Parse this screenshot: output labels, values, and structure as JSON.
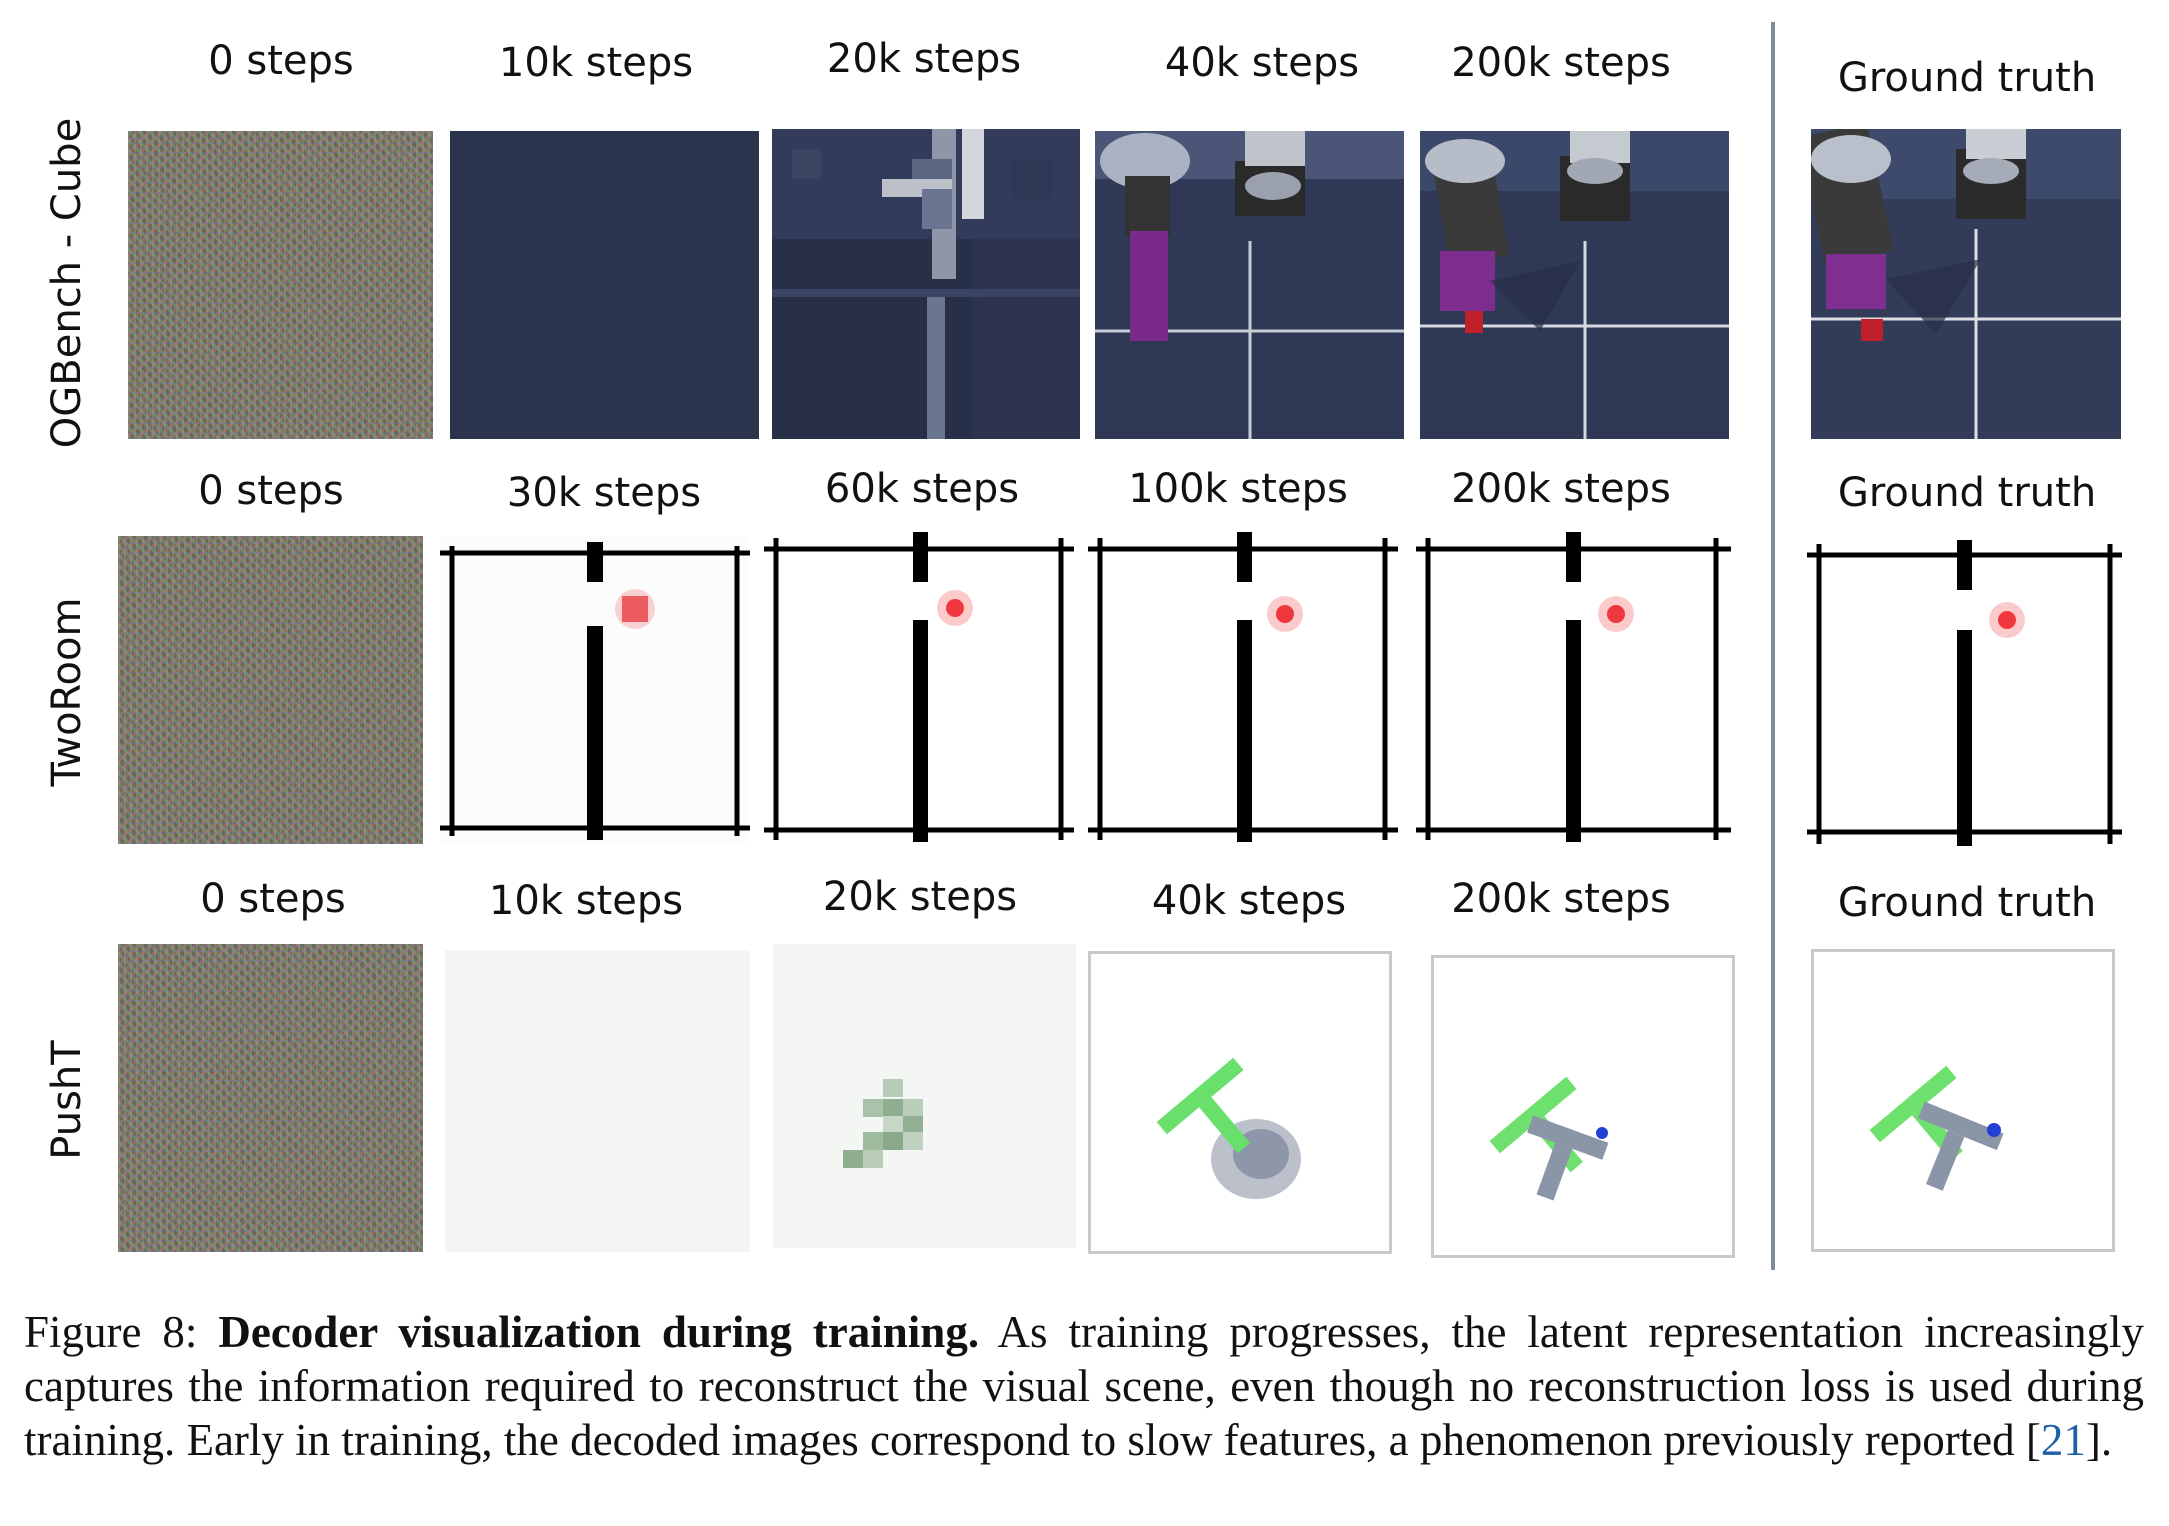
{
  "rows": [
    {
      "name": "OGBench - Cube",
      "labels": [
        "0 steps",
        "10k steps",
        "20k steps",
        "40k steps",
        "200k steps"
      ],
      "ground_truth": "Ground truth"
    },
    {
      "name": "TwoRoom",
      "labels": [
        "0 steps",
        "30k steps",
        "60k steps",
        "100k steps",
        "200k steps"
      ],
      "ground_truth": "Ground truth"
    },
    {
      "name": "PushT",
      "labels": [
        "0 steps",
        "10k steps",
        "20k steps",
        "40k steps",
        "200k steps"
      ],
      "ground_truth": "Ground truth"
    }
  ],
  "caption": {
    "prefix": "Figure 8: ",
    "title": "Decoder visualization during training.",
    "body": " As training progresses, the latent representation increasingly captures the information required to reconstruct the visual scene, even though no reconstruction loss is used during training. Early in training, the decoded images correspond to slow features, a phenomenon previously reported [",
    "citation": "21",
    "suffix": "]."
  }
}
